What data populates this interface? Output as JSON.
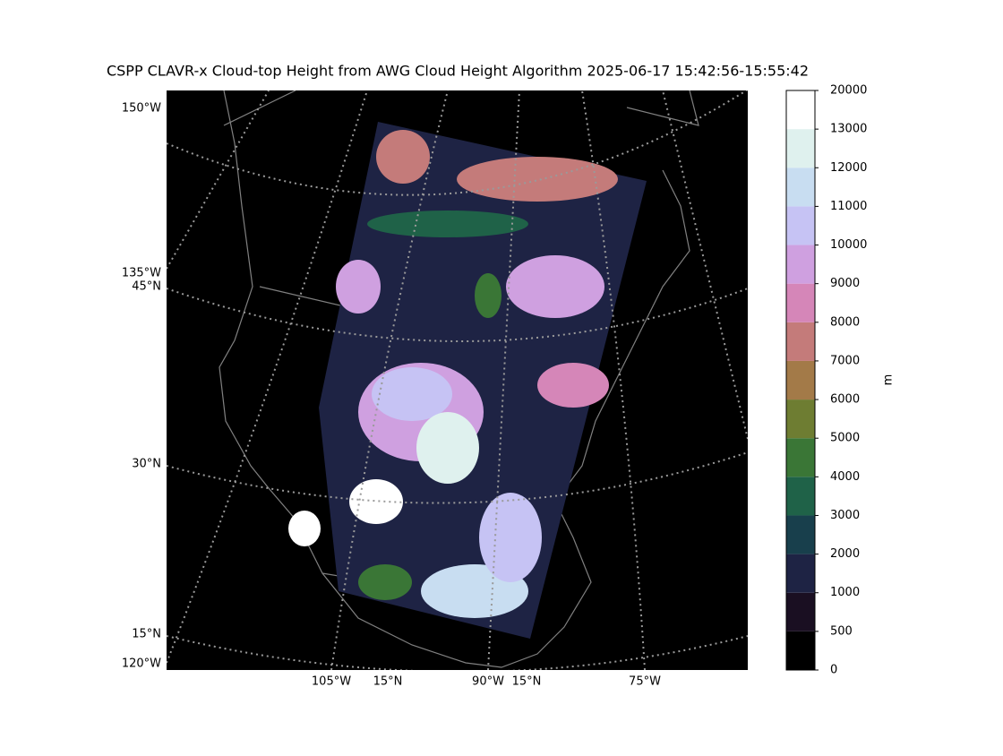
{
  "title": "CSPP CLAVR-x Cloud-top Height from AWG Cloud Height Algorithm 2025-06-17 15:42:56-15:55:42",
  "map_labels": {
    "left": [
      "150°W",
      "135°W",
      "45°N",
      "30°N",
      "15°N",
      "120°W"
    ],
    "bottom": [
      "105°W",
      "15°N",
      "90°W",
      "15°N",
      "75°W"
    ]
  },
  "colorbar": {
    "label": "m",
    "boundaries": [
      0,
      500,
      1000,
      2000,
      3000,
      4000,
      5000,
      6000,
      7000,
      8000,
      9000,
      10000,
      11000,
      12000,
      13000,
      20000
    ],
    "colors": [
      "#000000",
      "#1a0f22",
      "#1e2344",
      "#183f4c",
      "#1f6248",
      "#3a7636",
      "#6e7d32",
      "#a37a48",
      "#c47b7a",
      "#d586b8",
      "#cfa0e0",
      "#c6c3f4",
      "#c8ddf1",
      "#dff1ee",
      "#ffffff"
    ]
  }
}
